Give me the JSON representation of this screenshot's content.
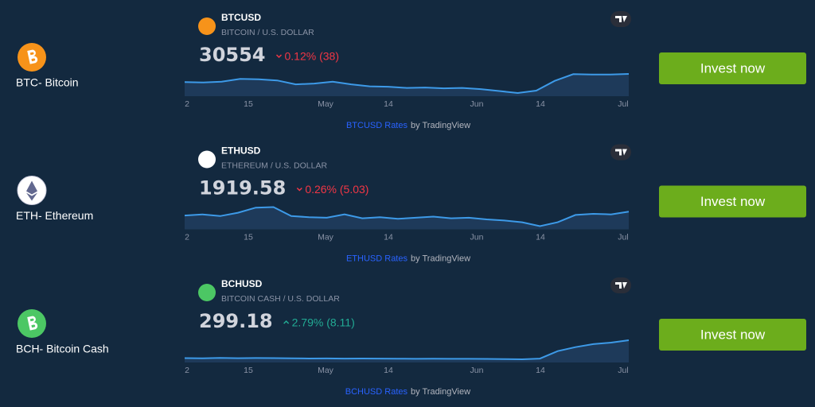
{
  "assets": [
    {
      "label": "BTC- Bitcoin",
      "icon_color": "#f7931a",
      "symbol": "BTCUSD",
      "description": "BITCOIN / U.S. DOLLAR",
      "price": 30554,
      "change": "0.12% (38)",
      "change_color": "#f23645",
      "sparkline": [
        28500,
        28400,
        28600,
        29300,
        29200,
        28900,
        27900,
        28100,
        28600,
        27900,
        27400,
        27300,
        27000,
        27100,
        26900,
        27000,
        26700,
        26200,
        25700,
        26300,
        28800,
        30500,
        30400,
        30400,
        30554
      ],
      "axis_labels": [
        "2",
        "15",
        "May",
        "14",
        "Jun",
        "14",
        "Jul"
      ],
      "link": "BTCUSD Rates",
      "attribution": "by TradingView",
      "button": "Invest now"
    },
    {
      "label": "ETH- Ethereum",
      "icon_color": "#ffffff",
      "symbol": "ETHUSD",
      "description": "ETHEREUM / U.S. DOLLAR",
      "price": 1919.58,
      "change": "0.26% (5.03)",
      "change_color": "#f23645",
      "sparkline": [
        1850,
        1870,
        1840,
        1900,
        1990,
        2000,
        1840,
        1820,
        1810,
        1870,
        1800,
        1820,
        1790,
        1810,
        1830,
        1800,
        1810,
        1780,
        1760,
        1730,
        1660,
        1730,
        1860,
        1880,
        1870,
        1919.58
      ],
      "axis_labels": [
        "2",
        "15",
        "May",
        "14",
        "Jun",
        "14",
        "Jul"
      ],
      "link": "ETHUSD Rates",
      "attribution": "by TradingView",
      "button": "Invest now"
    },
    {
      "label": "BCH- Bitcoin Cash",
      "icon_color": "#4cc764",
      "symbol": "BCHUSD",
      "description": "BITCOIN CASH / U.S. DOLLAR",
      "price": 299.18,
      "change": "2.79% (8.11)",
      "change_color": "#22ab94",
      "sparkline": [
        120,
        118,
        122,
        119,
        121,
        120,
        118,
        116,
        117,
        115,
        116,
        115,
        114,
        113,
        114,
        113,
        113,
        112,
        110,
        108,
        115,
        190,
        230,
        260,
        275,
        299.18
      ],
      "axis_labels": [
        "2",
        "15",
        "May",
        "14",
        "Jun",
        "14",
        "Jul"
      ],
      "link": "BCHUSD Rates",
      "attribution": "by TradingView",
      "button": "Invest now"
    }
  ]
}
